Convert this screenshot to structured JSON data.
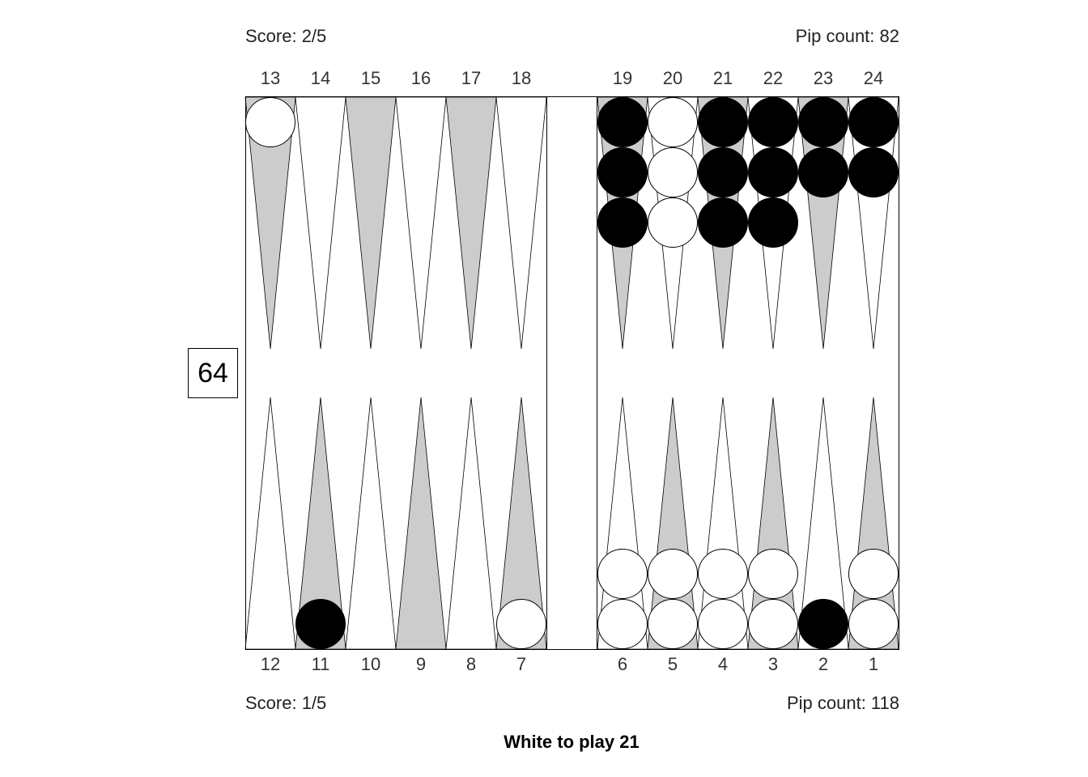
{
  "top_player": {
    "score": "Score: 2/5",
    "pip_count": "Pip count: 82"
  },
  "bottom_player": {
    "score": "Score: 1/5",
    "pip_count": "Pip count: 118"
  },
  "cube_value": "64",
  "status": "White to play 21",
  "top_point_labels": [
    "13",
    "14",
    "15",
    "16",
    "17",
    "18",
    "19",
    "20",
    "21",
    "22",
    "23",
    "24"
  ],
  "bottom_point_labels": [
    "12",
    "11",
    "10",
    "9",
    "8",
    "7",
    "6",
    "5",
    "4",
    "3",
    "2",
    "1"
  ],
  "colors": {
    "point_shaded": "#cccccc",
    "point_plain": "#ffffff",
    "checker_white": "#ffffff",
    "checker_black": "#000000",
    "outline": "#000000"
  },
  "checkers": [
    {
      "point": 13,
      "color": "white",
      "count": 1
    },
    {
      "point": 19,
      "color": "black",
      "count": 3
    },
    {
      "point": 20,
      "color": "white",
      "count": 3
    },
    {
      "point": 21,
      "color": "black",
      "count": 3
    },
    {
      "point": 22,
      "color": "black",
      "count": 3
    },
    {
      "point": 23,
      "color": "black",
      "count": 2
    },
    {
      "point": 24,
      "color": "black",
      "count": 2
    },
    {
      "point": 11,
      "color": "black",
      "count": 1
    },
    {
      "point": 7,
      "color": "white",
      "count": 1
    },
    {
      "point": 6,
      "color": "white",
      "count": 2
    },
    {
      "point": 5,
      "color": "white",
      "count": 2
    },
    {
      "point": 4,
      "color": "white",
      "count": 2
    },
    {
      "point": 3,
      "color": "white",
      "count": 2
    },
    {
      "point": 2,
      "color": "black",
      "count": 1
    },
    {
      "point": 1,
      "color": "white",
      "count": 2
    }
  ]
}
